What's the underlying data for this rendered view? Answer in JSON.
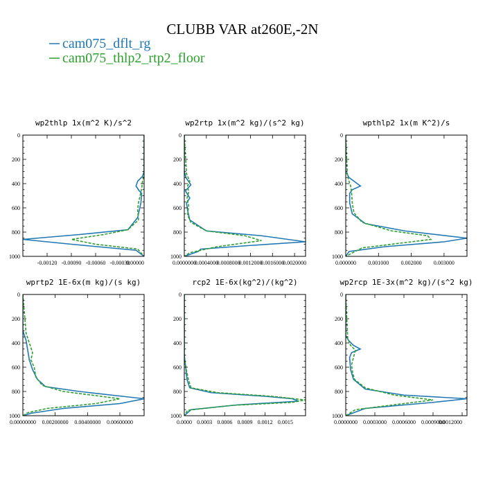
{
  "figure_title": "CLUBB VAR at260E,-2N",
  "legend": [
    {
      "label": "cam075_dflt_rg",
      "color": "#1f77b4",
      "dash": "solid"
    },
    {
      "label": "cam075_thlp2_rtp2_floor",
      "color": "#2ca02c",
      "dash": "dashed"
    }
  ],
  "chart_data": [
    {
      "type": "line",
      "title": "wp2thlp   1x(m^2 K)/s^2",
      "xlim": [
        -0.0015,
        0.0
      ],
      "ylim": [
        1000,
        0
      ],
      "xticks": [
        "-0.00120",
        "-0.00090",
        "-0.00060",
        "-0.00030",
        "0.00000"
      ],
      "xtick_values": [
        -0.0012,
        -0.0009,
        -0.0006,
        -0.0003,
        0.0
      ],
      "yticks": [
        0,
        200,
        400,
        600,
        800,
        1000
      ],
      "series": [
        {
          "name": "cam075_dflt_rg",
          "x": [
            0.0,
            0.0,
            -2e-05,
            -8e-05,
            -0.0001,
            -6e-05,
            -3e-05,
            -4e-05,
            -8e-05,
            -0.0002,
            -0.0008,
            -0.0015,
            -0.0009,
            -0.0001,
            0.0
          ],
          "y": [
            0,
            300,
            340,
            380,
            420,
            460,
            480,
            560,
            680,
            780,
            820,
            860,
            900,
            950,
            1000
          ]
        },
        {
          "name": "cam075_thlp2_rtp2_floor",
          "x": [
            0.0,
            0.0,
            -2e-05,
            -3e-05,
            -5e-05,
            -7e-05,
            -8e-05,
            -7e-05,
            -0.0002,
            -0.0005,
            -0.0009,
            -0.0006,
            -8e-05,
            0.0
          ],
          "y": [
            0,
            320,
            380,
            440,
            500,
            560,
            620,
            700,
            780,
            820,
            860,
            900,
            940,
            1000
          ]
        }
      ]
    },
    {
      "type": "line",
      "title": "wp2rtp   1x(m^2 kg)/(s^2 kg)",
      "xlim": [
        0.0,
        0.0022
      ],
      "ylim": [
        1000,
        0
      ],
      "xticks": [
        "0.0000000",
        "0.0004000",
        "0.0008000",
        "0.0012000",
        "0.0016000",
        "0.0020000"
      ],
      "xtick_values": [
        0.0,
        0.0004,
        0.0008,
        0.0012,
        0.0016,
        0.002
      ],
      "yticks": [
        0,
        200,
        400,
        600,
        800,
        1000
      ],
      "series": [
        {
          "name": "cam075_dflt_rg",
          "x": [
            0.0,
            0.0,
            3e-05,
            0.00012,
            2e-05,
            0.0001,
            4e-05,
            6e-05,
            0.0001,
            0.0004,
            0.0014,
            0.0022,
            0.0012,
            0.0003,
            0.00025,
            0.0
          ],
          "y": [
            0,
            300,
            350,
            410,
            460,
            520,
            560,
            620,
            700,
            790,
            830,
            880,
            910,
            940,
            960,
            1000
          ]
        },
        {
          "name": "cam075_thlp2_rtp2_floor",
          "x": [
            0.0,
            4e-05,
            0.0001,
            6e-05,
            8e-05,
            5e-05,
            8e-05,
            6e-05,
            0.00012,
            0.0004,
            0.0011,
            0.0014,
            0.0006,
            0.0001,
            0.0
          ],
          "y": [
            0,
            320,
            380,
            420,
            470,
            520,
            580,
            660,
            720,
            790,
            830,
            870,
            920,
            970,
            1000
          ]
        }
      ]
    },
    {
      "type": "line",
      "title": "wpthlp2   1x(m K^2)/s",
      "xlim": [
        0.0,
        0.0037
      ],
      "ylim": [
        1000,
        0
      ],
      "xticks": [
        "0.000000",
        "0.001000",
        "0.002000",
        "0.003000"
      ],
      "xtick_values": [
        0.0,
        0.001,
        0.002,
        0.003
      ],
      "yticks": [
        0,
        200,
        400,
        600,
        800,
        1000
      ],
      "series": [
        {
          "name": "cam075_dflt_rg",
          "x": [
            0.0,
            0.0,
            0.0001,
            0.0003,
            0.00045,
            0.0002,
            0.00012,
            0.00012,
            0.0002,
            0.0006,
            0.0018,
            0.0037,
            0.003,
            0.0012,
            0.0001,
            0.0
          ],
          "y": [
            0,
            300,
            350,
            390,
            420,
            450,
            480,
            560,
            650,
            730,
            790,
            850,
            880,
            920,
            960,
            1000
          ]
        },
        {
          "name": "cam075_thlp2_rtp2_floor",
          "x": [
            0.0,
            5e-05,
            0.0001,
            0.00015,
            0.00018,
            0.0002,
            0.00025,
            0.0005,
            0.0014,
            0.0025,
            0.0026,
            0.0017,
            0.0005,
            0.0
          ],
          "y": [
            0,
            330,
            380,
            420,
            480,
            560,
            640,
            720,
            790,
            830,
            860,
            890,
            930,
            1000
          ]
        }
      ]
    },
    {
      "type": "line",
      "title": "wprtp2   1E-6x(m kg)/(s kg)",
      "xlim": [
        0.0,
        0.0075
      ],
      "ylim": [
        1000,
        0
      ],
      "xticks": [
        "0.00000000",
        "0.00200000",
        "0.00400000",
        "0.00600000"
      ],
      "xtick_values": [
        0.0,
        0.002,
        0.004,
        0.006
      ],
      "yticks": [
        0,
        200,
        400,
        600,
        800,
        1000
      ],
      "series": [
        {
          "name": "cam075_dflt_rg",
          "x": [
            0.0,
            0.0,
            0.0002,
            0.0003,
            0.0004,
            0.0006,
            0.0009,
            0.0014,
            0.0035,
            0.0075,
            0.006,
            0.0025,
            0.0005,
            0.0
          ],
          "y": [
            0,
            300,
            380,
            460,
            540,
            620,
            700,
            760,
            800,
            860,
            900,
            940,
            980,
            1000
          ]
        },
        {
          "name": "cam075_thlp2_rtp2_floor",
          "x": [
            0.0,
            0.0002,
            0.0004,
            0.0006,
            0.0005,
            0.0007,
            0.0008,
            0.0012,
            0.0025,
            0.006,
            0.0045,
            0.0015,
            0.0003,
            0.0
          ],
          "y": [
            0,
            320,
            400,
            480,
            540,
            600,
            680,
            750,
            800,
            860,
            900,
            940,
            975,
            1000
          ]
        }
      ]
    },
    {
      "type": "line",
      "title": "rcp2   1E-6x(kg^2)/(kg^2)",
      "xlim": [
        0.0,
        0.0018
      ],
      "ylim": [
        1000,
        0
      ],
      "xticks": [
        "0.0000",
        "0.0003",
        "0.0006",
        "0.0009",
        "0.0012",
        "0.0015"
      ],
      "xtick_values": [
        0.0,
        0.0003,
        0.0006,
        0.0009,
        0.0012,
        0.0015
      ],
      "yticks": [
        0,
        200,
        400,
        600,
        800,
        1000
      ],
      "series": [
        {
          "name": "cam075_dflt_rg",
          "x": [
            0.0,
            0.0,
            2e-05,
            4e-05,
            8e-05,
            0.0004,
            0.0012,
            0.0016,
            0.0017,
            0.0008,
            0.0001,
            0.0
          ],
          "y": [
            0,
            500,
            600,
            700,
            770,
            810,
            840,
            860,
            880,
            910,
            950,
            1000
          ]
        },
        {
          "name": "cam075_thlp2_rtp2_floor",
          "x": [
            0.0,
            0.0,
            3e-05,
            6e-05,
            0.0001,
            0.0005,
            0.0013,
            0.0018,
            0.0016,
            0.0007,
            5e-05,
            0.0
          ],
          "y": [
            0,
            520,
            620,
            700,
            770,
            810,
            840,
            870,
            890,
            915,
            955,
            1000
          ]
        }
      ]
    },
    {
      "type": "line",
      "title": "wp2rcp   1E-3x(m^2 kg)/(s^2 kg)",
      "xlim": [
        0.0,
        0.00125
      ],
      "ylim": [
        1000,
        0
      ],
      "xticks": [
        "0.0000000",
        "0.0003000",
        "0.0006000",
        "0.0009000",
        "0.0012000"
      ],
      "xtick_values": [
        0.0,
        0.0003,
        0.0006,
        0.0009,
        0.0012
      ],
      "yticks": [
        0,
        200,
        400,
        600,
        800,
        1000
      ],
      "series": [
        {
          "name": "cam075_dflt_rg",
          "x": [
            0.0,
            0.0,
            3e-05,
            8e-05,
            0.00015,
            6e-05,
            4e-05,
            5e-05,
            8e-05,
            0.0002,
            0.0006,
            0.00125,
            0.0009,
            0.0002,
            0.0
          ],
          "y": [
            0,
            340,
            380,
            420,
            450,
            480,
            520,
            620,
            700,
            780,
            830,
            860,
            890,
            940,
            1000
          ]
        },
        {
          "name": "cam075_thlp2_rtp2_floor",
          "x": [
            0.0,
            2e-05,
            5e-05,
            0.0001,
            8e-05,
            6e-05,
            7e-05,
            9e-05,
            0.0002,
            0.0005,
            0.0009,
            0.0006,
            0.0001,
            0.0
          ],
          "y": [
            0,
            360,
            420,
            460,
            520,
            580,
            640,
            700,
            770,
            830,
            870,
            900,
            950,
            1000
          ]
        }
      ]
    }
  ]
}
